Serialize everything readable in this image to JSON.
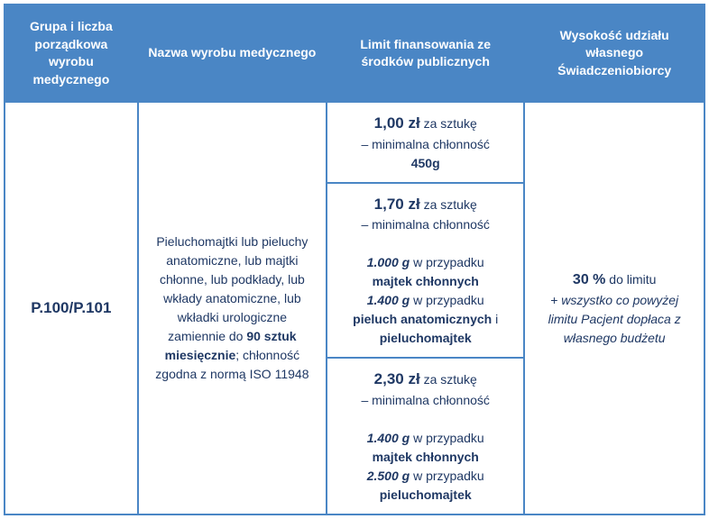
{
  "colors": {
    "header_bg": "#4a86c5",
    "header_text": "#ffffff",
    "border": "#4a86c5",
    "body_text": "#1f3864",
    "body_bg": "#ffffff"
  },
  "headers": {
    "col1": "Grupa i liczba porządkowa wyrobu medycznego",
    "col2": "Nazwa wyrobu medycznego",
    "col3": "Limit finansowania ze środków publicznych",
    "col4": "Wysokość udziału własnego Świadczeniobiorcy"
  },
  "row": {
    "code": "P.100/P.101",
    "product_desc_pre": "Pieluchomajtki lub pieluchy anatomiczne, lub majtki chłonne, lub podkłady, lub wkłady anatomiczne, lub wkładki urologiczne zamiennie do ",
    "product_desc_bold": "90 sztuk miesięcznie",
    "product_desc_post": "; chłonność zgodna z normą ISO 11948",
    "limits": [
      {
        "price": "1,00 zł",
        "per": " za sztukę",
        "line2": "– minimalna chłonność",
        "line3_bold": "450g"
      },
      {
        "price": "1,70 zł",
        "per": " za sztukę",
        "line2": "– minimalna chłonność",
        "detail1_val": "1.000 g",
        "detail1_txt": " w przypadku ",
        "detail1_bold": "majtek chłonnych",
        "detail2_val": "1.400 g",
        "detail2_txt": " w przypadku ",
        "detail2_bold1": "pieluch anatomicznych",
        "detail2_and": " i ",
        "detail2_bold2": "pieluchomajtek"
      },
      {
        "price": "2,30 zł",
        "per": " za sztukę",
        "line2": "– minimalna chłonność",
        "detail1_val": "1.400 g",
        "detail1_txt": " w przypadku ",
        "detail1_bold": "majtek chłonnych",
        "detail2_val": "2.500 g",
        "detail2_txt": " w przypadku ",
        "detail2_bold": "pieluchomajtek"
      }
    ],
    "share_pct": "30 %",
    "share_txt": " do limitu",
    "share_note": "+ wszystko co powyżej limitu Pacjent dopłaca z własnego budżetu"
  }
}
